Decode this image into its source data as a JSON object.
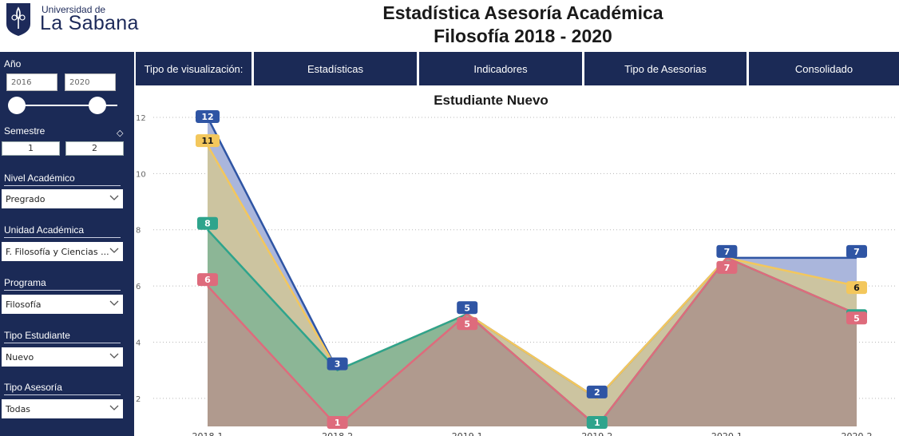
{
  "header": {
    "logo_small": "Universidad de",
    "logo_big": "La Sabana",
    "title_line1": "Estadística Asesoría Académica",
    "title_line2": "Filosofía 2018 - 2020"
  },
  "sidebar": {
    "year_label": "Año",
    "year_from": "2016",
    "year_to": "2020",
    "semester_label": "Semestre",
    "semester_1": "1",
    "semester_2": "2",
    "nivel_label": "Nivel Académico",
    "nivel_value": "Pregrado",
    "unidad_label": "Unidad Académica",
    "unidad_value": "F. Filosofía y Ciencias ...",
    "programa_label": "Programa",
    "programa_value": "Filosofía",
    "tipo_estudiante_label": "Tipo Estudiante",
    "tipo_estudiante_value": "Nuevo",
    "tipo_asesoria_label": "Tipo Asesoría",
    "tipo_asesoria_value": "Todas"
  },
  "tabs": {
    "visualizacion": "Tipo de visualización:",
    "estadisticas": "Estadísticas",
    "indicadores": "Indicadores",
    "tipo_asesorias": "Tipo de Asesorias",
    "consolidado": "Consolidado"
  },
  "colors": {
    "navy": "#1b2a56",
    "blue": "#2f55a4",
    "yellow": "#f3c75c",
    "teal": "#2ea48c",
    "pink": "#de6b7c"
  },
  "chart_data": {
    "type": "area",
    "title": "Estudiante Nuevo",
    "categories": [
      "2018-1",
      "2018-2",
      "2019-1",
      "2019-2",
      "2020-1",
      "2020-2"
    ],
    "ylim": [
      1,
      12
    ],
    "yticks": [
      2,
      4,
      6,
      8,
      10,
      12
    ],
    "grid": true,
    "series": [
      {
        "values": [
          12,
          3,
          5,
          2,
          7,
          7
        ],
        "color": "#2f55a4",
        "fill": "#aab6dc",
        "labels": [
          "12",
          "3",
          "5",
          "2",
          "7",
          "7"
        ]
      },
      {
        "values": [
          11,
          3,
          5,
          2,
          7,
          6
        ],
        "color": "#f3c75c",
        "fill": "#ccc4a0",
        "labels": [
          "11",
          "",
          "",
          "",
          "",
          "6"
        ]
      },
      {
        "values": [
          8,
          3,
          5,
          1,
          7,
          5
        ],
        "color": "#2ea48c",
        "fill": "#8cb696",
        "labels": [
          "8",
          "",
          "",
          "1",
          "",
          "5"
        ]
      },
      {
        "values": [
          6,
          1,
          5,
          1,
          7,
          5
        ],
        "color": "#de6b7c",
        "fill": "#b09a8e",
        "labels": [
          "6",
          "1",
          "5",
          "",
          "7",
          "5"
        ]
      }
    ]
  }
}
